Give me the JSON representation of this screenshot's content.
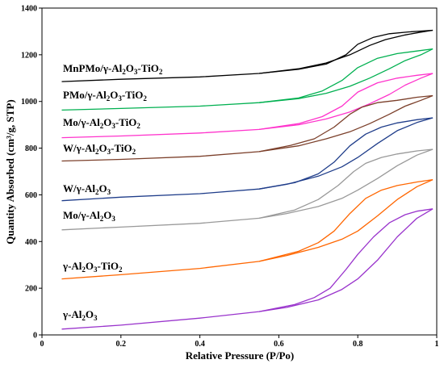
{
  "chart_data": {
    "type": "line",
    "xlabel": "Relative Pressure (P/Po)",
    "ylabel": "Quantity Absorbed (cm³/g, STP)",
    "xlim": [
      0,
      1
    ],
    "ylim": [
      0,
      1400
    ],
    "xticks": [
      "0",
      "0.2",
      "0.4",
      "0.6",
      "0.8",
      "1"
    ],
    "yticks": [
      "0",
      "200",
      "400",
      "600",
      "800",
      "1000",
      "1200",
      "1400"
    ],
    "grid": false,
    "series": [
      {
        "name": "MnPMo/γ-Al2O3-TiO2",
        "color": "#000000",
        "adsorption": [
          [
            0.05,
            1085
          ],
          [
            0.2,
            1095
          ],
          [
            0.4,
            1105
          ],
          [
            0.55,
            1120
          ],
          [
            0.65,
            1140
          ],
          [
            0.72,
            1165
          ],
          [
            0.78,
            1200
          ],
          [
            0.83,
            1240
          ],
          [
            0.87,
            1265
          ],
          [
            0.92,
            1285
          ],
          [
            0.96,
            1297
          ],
          [
            0.99,
            1305
          ]
        ],
        "desorption": [
          [
            0.99,
            1305
          ],
          [
            0.93,
            1298
          ],
          [
            0.88,
            1290
          ],
          [
            0.84,
            1275
          ],
          [
            0.8,
            1245
          ],
          [
            0.77,
            1200
          ],
          [
            0.72,
            1160
          ],
          [
            0.65,
            1138
          ],
          [
            0.55,
            1120
          ]
        ]
      },
      {
        "name": "PMo/γ-Al2O3-TiO2",
        "color": "#00b050",
        "adsorption": [
          [
            0.05,
            963
          ],
          [
            0.2,
            970
          ],
          [
            0.4,
            980
          ],
          [
            0.55,
            995
          ],
          [
            0.65,
            1012
          ],
          [
            0.72,
            1035
          ],
          [
            0.78,
            1065
          ],
          [
            0.83,
            1100
          ],
          [
            0.88,
            1140
          ],
          [
            0.92,
            1175
          ],
          [
            0.96,
            1200
          ],
          [
            0.99,
            1225
          ]
        ],
        "desorption": [
          [
            0.99,
            1225
          ],
          [
            0.95,
            1216
          ],
          [
            0.9,
            1205
          ],
          [
            0.85,
            1185
          ],
          [
            0.8,
            1145
          ],
          [
            0.76,
            1090
          ],
          [
            0.71,
            1045
          ],
          [
            0.65,
            1015
          ],
          [
            0.55,
            995
          ]
        ]
      },
      {
        "name": "Mo/γ-Al2O3-TiO2",
        "color": "#ff33cc",
        "adsorption": [
          [
            0.05,
            845
          ],
          [
            0.2,
            852
          ],
          [
            0.4,
            865
          ],
          [
            0.55,
            880
          ],
          [
            0.65,
            900
          ],
          [
            0.72,
            925
          ],
          [
            0.78,
            955
          ],
          [
            0.83,
            990
          ],
          [
            0.88,
            1030
          ],
          [
            0.92,
            1070
          ],
          [
            0.96,
            1100
          ],
          [
            0.99,
            1120
          ]
        ],
        "desorption": [
          [
            0.99,
            1120
          ],
          [
            0.95,
            1112
          ],
          [
            0.9,
            1100
          ],
          [
            0.85,
            1080
          ],
          [
            0.8,
            1040
          ],
          [
            0.76,
            980
          ],
          [
            0.71,
            935
          ],
          [
            0.65,
            905
          ],
          [
            0.55,
            880
          ]
        ]
      },
      {
        "name": "W/γ-Al2O3-TiO2",
        "color": "#7b3f2a",
        "adsorption": [
          [
            0.05,
            745
          ],
          [
            0.2,
            752
          ],
          [
            0.4,
            765
          ],
          [
            0.55,
            785
          ],
          [
            0.65,
            810
          ],
          [
            0.72,
            840
          ],
          [
            0.78,
            870
          ],
          [
            0.83,
            905
          ],
          [
            0.88,
            945
          ],
          [
            0.92,
            980
          ],
          [
            0.96,
            1005
          ],
          [
            0.99,
            1025
          ]
        ],
        "desorption": [
          [
            0.99,
            1025
          ],
          [
            0.95,
            1018
          ],
          [
            0.9,
            1005
          ],
          [
            0.85,
            995
          ],
          [
            0.81,
            975
          ],
          [
            0.78,
            945
          ],
          [
            0.74,
            890
          ],
          [
            0.69,
            840
          ],
          [
            0.63,
            812
          ],
          [
            0.55,
            785
          ]
        ]
      },
      {
        "name": "W/γ-Al2O3",
        "color": "#1f3d8a",
        "adsorption": [
          [
            0.05,
            575
          ],
          [
            0.2,
            590
          ],
          [
            0.4,
            605
          ],
          [
            0.55,
            625
          ],
          [
            0.62,
            645
          ],
          [
            0.7,
            680
          ],
          [
            0.76,
            720
          ],
          [
            0.8,
            760
          ],
          [
            0.85,
            820
          ],
          [
            0.9,
            875
          ],
          [
            0.95,
            910
          ],
          [
            0.99,
            930
          ]
        ],
        "desorption": [
          [
            0.99,
            930
          ],
          [
            0.95,
            922
          ],
          [
            0.9,
            908
          ],
          [
            0.86,
            890
          ],
          [
            0.82,
            860
          ],
          [
            0.78,
            810
          ],
          [
            0.74,
            740
          ],
          [
            0.7,
            690
          ],
          [
            0.64,
            652
          ],
          [
            0.55,
            625
          ]
        ]
      },
      {
        "name": "Mo/γ-Al2O3",
        "color": "#999999",
        "adsorption": [
          [
            0.05,
            450
          ],
          [
            0.2,
            462
          ],
          [
            0.4,
            478
          ],
          [
            0.55,
            500
          ],
          [
            0.62,
            520
          ],
          [
            0.7,
            550
          ],
          [
            0.76,
            585
          ],
          [
            0.8,
            620
          ],
          [
            0.85,
            670
          ],
          [
            0.9,
            725
          ],
          [
            0.95,
            770
          ],
          [
            0.99,
            795
          ]
        ],
        "desorption": [
          [
            0.99,
            795
          ],
          [
            0.95,
            788
          ],
          [
            0.9,
            775
          ],
          [
            0.86,
            760
          ],
          [
            0.82,
            735
          ],
          [
            0.79,
            700
          ],
          [
            0.75,
            640
          ],
          [
            0.7,
            580
          ],
          [
            0.64,
            535
          ],
          [
            0.55,
            500
          ]
        ]
      },
      {
        "name": "γ-Al2O3-TiO2",
        "color": "#ff6600",
        "adsorption": [
          [
            0.05,
            240
          ],
          [
            0.2,
            258
          ],
          [
            0.4,
            285
          ],
          [
            0.55,
            315
          ],
          [
            0.62,
            340
          ],
          [
            0.7,
            375
          ],
          [
            0.76,
            410
          ],
          [
            0.8,
            445
          ],
          [
            0.85,
            510
          ],
          [
            0.9,
            580
          ],
          [
            0.95,
            635
          ],
          [
            0.99,
            665
          ]
        ],
        "desorption": [
          [
            0.99,
            665
          ],
          [
            0.95,
            655
          ],
          [
            0.9,
            640
          ],
          [
            0.86,
            620
          ],
          [
            0.82,
            585
          ],
          [
            0.78,
            520
          ],
          [
            0.74,
            445
          ],
          [
            0.7,
            395
          ],
          [
            0.65,
            358
          ],
          [
            0.55,
            315
          ]
        ]
      },
      {
        "name": "γ-Al2O3",
        "color": "#9933cc",
        "adsorption": [
          [
            0.05,
            25
          ],
          [
            0.2,
            42
          ],
          [
            0.4,
            72
          ],
          [
            0.55,
            100
          ],
          [
            0.62,
            118
          ],
          [
            0.7,
            150
          ],
          [
            0.76,
            195
          ],
          [
            0.8,
            240
          ],
          [
            0.85,
            320
          ],
          [
            0.9,
            420
          ],
          [
            0.95,
            500
          ],
          [
            0.99,
            540
          ]
        ],
        "desorption": [
          [
            0.99,
            540
          ],
          [
            0.95,
            530
          ],
          [
            0.92,
            515
          ],
          [
            0.88,
            480
          ],
          [
            0.84,
            420
          ],
          [
            0.8,
            345
          ],
          [
            0.77,
            280
          ],
          [
            0.73,
            200
          ],
          [
            0.69,
            160
          ],
          [
            0.64,
            130
          ],
          [
            0.55,
            100
          ]
        ]
      }
    ],
    "series_labels": [
      {
        "main": "MnPMo/γ-Al",
        "parts": [
          [
            "MnPMo/γ-Al",
            ""
          ],
          [
            "2",
            ""
          ],
          [
            "O",
            ""
          ],
          [
            "3",
            ""
          ],
          [
            "-TiO",
            ""
          ],
          [
            "2",
            ""
          ]
        ]
      }
    ]
  },
  "labels": {
    "s0": {
      "a": "MnPMo/γ-Al",
      "b": "2",
      "c": "O",
      "d": "3",
      "e": "-TiO",
      "f": "2"
    },
    "s1": {
      "a": "PMo/γ-Al",
      "b": "2",
      "c": "O",
      "d": "3",
      "e": "-TiO",
      "f": "2"
    },
    "s2": {
      "a": "Mo/γ-Al",
      "b": "2",
      "c": "O",
      "d": "3",
      "e": "-TiO",
      "f": "2"
    },
    "s3": {
      "a": "W/γ-Al",
      "b": "2",
      "c": "O",
      "d": "3",
      "e": "-TiO",
      "f": "2"
    },
    "s4": {
      "a": "W/γ-Al",
      "b": "2",
      "c": "O",
      "d": "3"
    },
    "s5": {
      "a": "Mo/γ-Al",
      "b": "2",
      "c": "O",
      "d": "3"
    },
    "s6": {
      "a": "γ-Al",
      "b": "2",
      "c": "O",
      "d": "3",
      "e": "-TiO",
      "f": "2"
    },
    "s7": {
      "a": "γ-Al",
      "b": "2",
      "c": "O",
      "d": "3"
    }
  }
}
